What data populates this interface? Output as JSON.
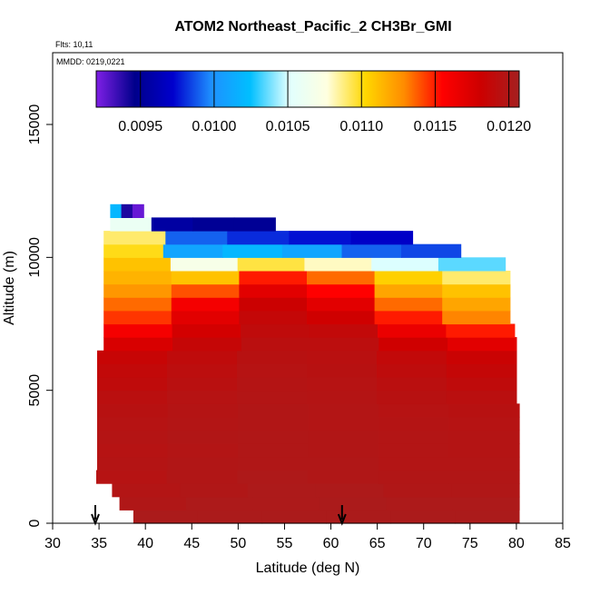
{
  "chart_data": {
    "type": "heatmap",
    "title": "ATOM2 Northeast_Pacific_2 CH3Br_GMI",
    "flights_label": "Flts: 10,11",
    "mmdd_label": "MMDD: 0219,0221",
    "xlabel": "Latitude (deg N)",
    "ylabel": "Altitude (m)",
    "xlim": [
      30,
      85
    ],
    "ylim": [
      0,
      17700
    ],
    "x_ticks": [
      "30",
      "35",
      "40",
      "45",
      "50",
      "55",
      "60",
      "65",
      "70",
      "75",
      "80",
      "85"
    ],
    "y_ticks": [
      "0",
      "5000",
      "10000",
      "15000"
    ],
    "colorbar": {
      "range": [
        0.0092,
        0.01207
      ],
      "tick_labels": [
        "0.0095",
        "0.0100",
        "0.0105",
        "0.0110",
        "0.0115",
        "0.0120"
      ],
      "tick_values": [
        0.0095,
        0.01,
        0.0105,
        0.011,
        0.0115,
        0.012
      ],
      "colors": [
        "#7f1fe6",
        "#00008b",
        "#0000cd",
        "#1e90ff",
        "#00bfff",
        "#e0ffff",
        "#ffffe0",
        "#ffd700",
        "#ff8c00",
        "#ff0000",
        "#cd0000",
        "#a52020"
      ]
    },
    "altitude_rows": [
      {
        "alt": 250,
        "lat_start": 38.7,
        "lat_end": 80.3,
        "values": [
          0.01203,
          0.01203,
          0.01203,
          0.01203,
          0.01203,
          0.01203
        ]
      },
      {
        "alt": 750,
        "lat_start": 37.2,
        "lat_end": 80.3,
        "values": [
          0.012,
          0.01202,
          0.01202,
          0.01203,
          0.01202,
          0.01202
        ]
      },
      {
        "alt": 1250,
        "lat_start": 36.4,
        "lat_end": 80.3,
        "values": [
          0.01198,
          0.012,
          0.01202,
          0.01202,
          0.012,
          0.012
        ]
      },
      {
        "alt": 1750,
        "lat_start": 34.7,
        "lat_end": 80.3,
        "values": [
          0.01196,
          0.01199,
          0.01201,
          0.012,
          0.01199,
          0.01199
        ]
      },
      {
        "alt": 2250,
        "lat_start": 34.8,
        "lat_end": 80.3,
        "values": [
          0.01197,
          0.01199,
          0.012,
          0.012,
          0.01198,
          0.01198
        ]
      },
      {
        "alt": 2750,
        "lat_start": 34.8,
        "lat_end": 80.3,
        "values": [
          0.01196,
          0.01198,
          0.012,
          0.01199,
          0.01198,
          0.01197
        ]
      },
      {
        "alt": 3250,
        "lat_start": 34.8,
        "lat_end": 80.3,
        "values": [
          0.01197,
          0.01199,
          0.012,
          0.01199,
          0.01198,
          0.01197
        ]
      },
      {
        "alt": 3750,
        "lat_start": 34.8,
        "lat_end": 80.3,
        "values": [
          0.01196,
          0.01198,
          0.01199,
          0.01198,
          0.01197,
          0.01196
        ]
      },
      {
        "alt": 4250,
        "lat_start": 34.8,
        "lat_end": 80.3,
        "values": [
          0.01195,
          0.01197,
          0.01199,
          0.01198,
          0.01196,
          0.01195
        ]
      },
      {
        "alt": 4750,
        "lat_start": 34.8,
        "lat_end": 80.0,
        "values": [
          0.01193,
          0.01196,
          0.01198,
          0.01197,
          0.01195,
          0.01193
        ]
      },
      {
        "alt": 5250,
        "lat_start": 34.8,
        "lat_end": 80.0,
        "values": [
          0.0119,
          0.01194,
          0.01197,
          0.01196,
          0.01193,
          0.0119
        ]
      },
      {
        "alt": 5750,
        "lat_start": 34.8,
        "lat_end": 80.0,
        "values": [
          0.01188,
          0.01192,
          0.01196,
          0.01195,
          0.01191,
          0.01187
        ]
      },
      {
        "alt": 6250,
        "lat_start": 34.8,
        "lat_end": 80.0,
        "values": [
          0.01185,
          0.0119,
          0.01195,
          0.01194,
          0.01188,
          0.01183
        ]
      },
      {
        "alt": 6750,
        "lat_start": 35.5,
        "lat_end": 80.0,
        "values": [
          0.01175,
          0.01186,
          0.01193,
          0.01192,
          0.0118,
          0.0117
        ]
      },
      {
        "alt": 7250,
        "lat_start": 35.5,
        "lat_end": 79.8,
        "values": [
          0.0116,
          0.01178,
          0.0119,
          0.01188,
          0.01165,
          0.0115
        ]
      },
      {
        "alt": 7750,
        "lat_start": 35.5,
        "lat_end": 79.3,
        "values": [
          0.01145,
          0.0117,
          0.01187,
          0.0118,
          0.0115,
          0.0113
        ]
      },
      {
        "alt": 8250,
        "lat_start": 35.5,
        "lat_end": 79.3,
        "values": [
          0.01135,
          0.0116,
          0.01182,
          0.0117,
          0.01135,
          0.0112
        ]
      },
      {
        "alt": 8750,
        "lat_start": 35.5,
        "lat_end": 79.3,
        "values": [
          0.01125,
          0.0114,
          0.0117,
          0.01155,
          0.0112,
          0.0111
        ]
      },
      {
        "alt": 9250,
        "lat_start": 35.5,
        "lat_end": 79.3,
        "values": [
          0.01115,
          0.0111,
          0.0115,
          0.01135,
          0.01105,
          0.0109
        ]
      },
      {
        "alt": 9750,
        "lat_start": 35.5,
        "lat_end": 78.8,
        "values": [
          0.0111,
          0.0107,
          0.01095,
          0.0108,
          0.0105,
          0.01035
        ]
      },
      {
        "alt": 10250,
        "lat_start": 35.5,
        "lat_end": 74.0,
        "values": [
          0.011,
          0.0101,
          0.0102,
          0.0101,
          0.0099,
          0.00985
        ]
      },
      {
        "alt": 10750,
        "lat_start": 35.5,
        "lat_end": 68.8,
        "values": [
          0.0109,
          0.0099,
          0.0098,
          0.00975,
          0.0097
        ]
      },
      {
        "alt": 11250,
        "lat_start": 36.2,
        "lat_end": 54.0,
        "values": [
          0.0106,
          0.00955,
          0.0095,
          0.0095
        ]
      },
      {
        "alt": 11750,
        "lat_start": 36.2,
        "lat_end": 39.8,
        "values": [
          0.0102,
          0.0094,
          0.00925
        ]
      }
    ],
    "arrows_at_lat": [
      34.6,
      61.2
    ]
  }
}
